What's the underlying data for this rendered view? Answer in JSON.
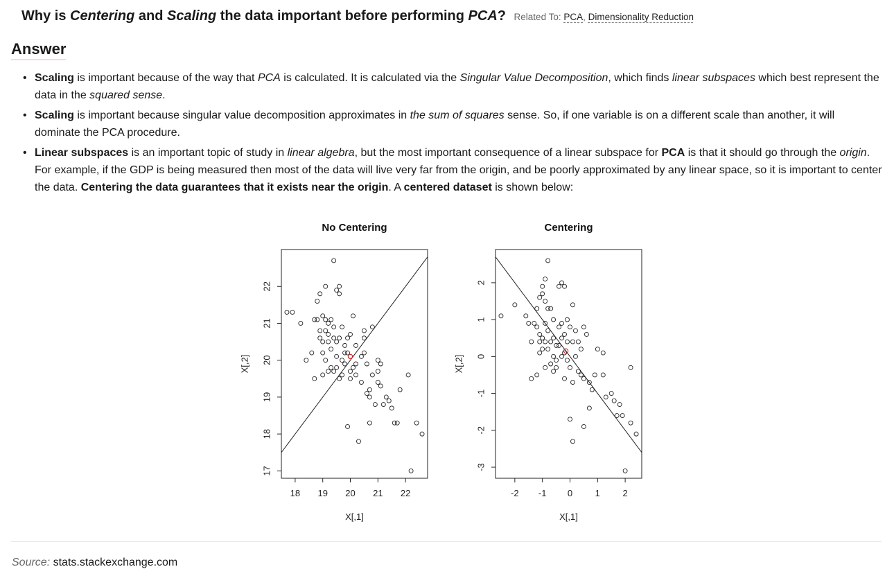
{
  "question": {
    "p1": "Why is ",
    "em1": "Centering",
    "p2": " and ",
    "em2": "Scaling",
    "p3": " the data important before performing ",
    "em3": "PCA",
    "p4": "?",
    "related_label": "Related To:",
    "tags": [
      "PCA",
      "Dimensionality Reduction"
    ]
  },
  "answer_heading": "Answer",
  "bullets": [
    [
      {
        "t": "Scaling",
        "s": "b"
      },
      {
        "t": " is important because of the way that "
      },
      {
        "t": "PCA",
        "s": "i"
      },
      {
        "t": " is calculated. It is calculated via the "
      },
      {
        "t": "Singular Value Decomposition",
        "s": "i"
      },
      {
        "t": ", which finds "
      },
      {
        "t": "linear subspaces",
        "s": "i"
      },
      {
        "t": " which best represent the data in the "
      },
      {
        "t": "squared sense",
        "s": "i"
      },
      {
        "t": "."
      }
    ],
    [
      {
        "t": "Scaling",
        "s": "b"
      },
      {
        "t": " is important because singular value decomposition approximates in "
      },
      {
        "t": "the sum of squares",
        "s": "i"
      },
      {
        "t": " sense. So, if one variable is on a different scale than another, it will dominate the PCA procedure."
      }
    ],
    [
      {
        "t": "Linear subspaces",
        "s": "b"
      },
      {
        "t": " is an important topic of study in "
      },
      {
        "t": "linear algebra",
        "s": "i"
      },
      {
        "t": ", but the most important consequence of a linear subspace for "
      },
      {
        "t": "PCA",
        "s": "b"
      },
      {
        "t": " is that it should go through the "
      },
      {
        "t": "origin",
        "s": "i"
      },
      {
        "t": ". For example, if the GDP is being measured then most of the data will live very far from the origin, and be poorly approximated by any linear space, so it is important to center the data. "
      },
      {
        "t": "Centering the data guarantees that it exists near the origin",
        "s": "b"
      },
      {
        "t": ". A "
      },
      {
        "t": "centered dataset",
        "s": "b"
      },
      {
        "t": " is shown below:"
      }
    ]
  ],
  "source": {
    "label": "Source:",
    "text": "stats.stackexchange.com"
  },
  "chart_data": [
    {
      "type": "scatter",
      "title": "No Centering",
      "xlabel": "X[,1]",
      "ylabel": "X[,2]",
      "xlim": [
        17.5,
        22.8
      ],
      "ylim": [
        16.8,
        23.0
      ],
      "xticks": [
        18,
        19,
        20,
        21,
        22
      ],
      "yticks": [
        17,
        18,
        19,
        20,
        21,
        22
      ],
      "line": {
        "x": [
          17.5,
          22.8
        ],
        "y": [
          17.5,
          22.8
        ]
      },
      "mean_point": {
        "x": 20.0,
        "y": 20.1
      },
      "points": [
        [
          17.7,
          21.3
        ],
        [
          17.9,
          21.3
        ],
        [
          18.2,
          21.0
        ],
        [
          18.4,
          20.0
        ],
        [
          18.6,
          20.2
        ],
        [
          18.7,
          19.5
        ],
        [
          18.7,
          21.1
        ],
        [
          18.8,
          21.6
        ],
        [
          18.8,
          21.1
        ],
        [
          18.9,
          20.8
        ],
        [
          18.9,
          20.6
        ],
        [
          18.9,
          21.8
        ],
        [
          19.0,
          20.5
        ],
        [
          19.0,
          21.2
        ],
        [
          19.0,
          19.6
        ],
        [
          19.0,
          20.2
        ],
        [
          19.1,
          22.0
        ],
        [
          19.1,
          21.1
        ],
        [
          19.1,
          20.8
        ],
        [
          19.1,
          20.0
        ],
        [
          19.2,
          21.0
        ],
        [
          19.2,
          20.7
        ],
        [
          19.2,
          20.5
        ],
        [
          19.2,
          19.7
        ],
        [
          19.3,
          21.1
        ],
        [
          19.3,
          19.8
        ],
        [
          19.3,
          20.3
        ],
        [
          19.4,
          22.7
        ],
        [
          19.4,
          20.6
        ],
        [
          19.4,
          20.9
        ],
        [
          19.4,
          19.7
        ],
        [
          19.5,
          21.9
        ],
        [
          19.5,
          20.5
        ],
        [
          19.5,
          20.1
        ],
        [
          19.5,
          19.8
        ],
        [
          19.6,
          22.0
        ],
        [
          19.6,
          21.8
        ],
        [
          19.6,
          20.6
        ],
        [
          19.6,
          19.5
        ],
        [
          19.7,
          20.9
        ],
        [
          19.7,
          20.0
        ],
        [
          19.7,
          19.6
        ],
        [
          19.8,
          20.2
        ],
        [
          19.8,
          20.4
        ],
        [
          19.8,
          19.9
        ],
        [
          19.9,
          20.6
        ],
        [
          19.9,
          20.2
        ],
        [
          19.9,
          18.2
        ],
        [
          20.0,
          20.7
        ],
        [
          20.0,
          20.1
        ],
        [
          20.0,
          19.7
        ],
        [
          20.0,
          19.5
        ],
        [
          20.1,
          21.2
        ],
        [
          20.1,
          19.8
        ],
        [
          20.2,
          20.4
        ],
        [
          20.2,
          19.9
        ],
        [
          20.2,
          19.6
        ],
        [
          20.3,
          17.8
        ],
        [
          20.4,
          20.1
        ],
        [
          20.4,
          19.4
        ],
        [
          20.5,
          20.6
        ],
        [
          20.5,
          20.2
        ],
        [
          20.5,
          20.8
        ],
        [
          20.6,
          19.1
        ],
        [
          20.6,
          19.9
        ],
        [
          20.7,
          19.2
        ],
        [
          20.7,
          19.0
        ],
        [
          20.7,
          18.3
        ],
        [
          20.8,
          20.9
        ],
        [
          20.8,
          19.6
        ],
        [
          20.9,
          18.8
        ],
        [
          21.0,
          20.0
        ],
        [
          21.0,
          19.7
        ],
        [
          21.0,
          19.4
        ],
        [
          21.1,
          19.3
        ],
        [
          21.1,
          19.9
        ],
        [
          21.2,
          18.8
        ],
        [
          21.3,
          19.0
        ],
        [
          21.4,
          18.9
        ],
        [
          21.5,
          18.7
        ],
        [
          21.6,
          18.3
        ],
        [
          21.7,
          18.3
        ],
        [
          21.8,
          19.2
        ],
        [
          22.1,
          19.6
        ],
        [
          22.2,
          17.0
        ],
        [
          22.4,
          18.3
        ],
        [
          22.6,
          18.0
        ]
      ]
    },
    {
      "type": "scatter",
      "title": "Centering",
      "xlabel": "X[,1]",
      "ylabel": "X[,2]",
      "xlim": [
        -2.7,
        2.6
      ],
      "ylim": [
        -3.3,
        2.9
      ],
      "xticks": [
        -2,
        -1,
        0,
        1,
        2
      ],
      "yticks": [
        -3,
        -2,
        -1,
        0,
        1,
        2
      ],
      "line": {
        "x": [
          -2.7,
          2.6
        ],
        "y": [
          2.7,
          -2.6
        ]
      },
      "mean_point": {
        "x": -0.15,
        "y": 0.15
      },
      "points": [
        [
          -2.5,
          1.1
        ],
        [
          -2.0,
          1.4
        ],
        [
          -1.6,
          1.1
        ],
        [
          -1.5,
          0.9
        ],
        [
          -1.4,
          0.4
        ],
        [
          -1.4,
          -0.6
        ],
        [
          -1.3,
          0.9
        ],
        [
          -1.2,
          1.3
        ],
        [
          -1.2,
          0.8
        ],
        [
          -1.2,
          -0.5
        ],
        [
          -1.1,
          0.6
        ],
        [
          -1.1,
          0.4
        ],
        [
          -1.1,
          1.6
        ],
        [
          -1.1,
          0.1
        ],
        [
          -1.0,
          1.7
        ],
        [
          -1.0,
          0.5
        ],
        [
          -1.0,
          0.2
        ],
        [
          -1.0,
          1.9
        ],
        [
          -0.9,
          1.5
        ],
        [
          -0.9,
          0.9
        ],
        [
          -0.9,
          0.4
        ],
        [
          -0.9,
          -0.3
        ],
        [
          -0.9,
          2.1
        ],
        [
          -0.8,
          1.3
        ],
        [
          -0.8,
          0.7
        ],
        [
          -0.8,
          0.2
        ],
        [
          -0.8,
          2.6
        ],
        [
          -0.7,
          1.3
        ],
        [
          -0.7,
          0.4
        ],
        [
          -0.7,
          -0.2
        ],
        [
          -0.6,
          1.0
        ],
        [
          -0.6,
          0.5
        ],
        [
          -0.6,
          0.0
        ],
        [
          -0.6,
          -0.4
        ],
        [
          -0.5,
          0.3
        ],
        [
          -0.5,
          -0.1
        ],
        [
          -0.5,
          -0.3
        ],
        [
          -0.4,
          1.9
        ],
        [
          -0.4,
          0.8
        ],
        [
          -0.4,
          0.3
        ],
        [
          -0.3,
          2.0
        ],
        [
          -0.3,
          0.9
        ],
        [
          -0.3,
          0.5
        ],
        [
          -0.3,
          0.0
        ],
        [
          -0.2,
          1.9
        ],
        [
          -0.2,
          0.6
        ],
        [
          -0.2,
          0.1
        ],
        [
          -0.2,
          -0.6
        ],
        [
          -0.1,
          1.0
        ],
        [
          -0.1,
          0.4
        ],
        [
          -0.1,
          -0.1
        ],
        [
          0.0,
          0.8
        ],
        [
          0.0,
          -0.3
        ],
        [
          0.0,
          -1.7
        ],
        [
          0.1,
          1.4
        ],
        [
          0.1,
          0.4
        ],
        [
          0.1,
          -0.7
        ],
        [
          0.1,
          -2.3
        ],
        [
          0.2,
          0.7
        ],
        [
          0.2,
          0.0
        ],
        [
          0.3,
          0.4
        ],
        [
          0.3,
          -0.4
        ],
        [
          0.4,
          0.2
        ],
        [
          0.4,
          -0.5
        ],
        [
          0.5,
          0.8
        ],
        [
          0.5,
          -1.9
        ],
        [
          0.5,
          -0.6
        ],
        [
          0.6,
          0.6
        ],
        [
          0.7,
          -0.7
        ],
        [
          0.7,
          -1.4
        ],
        [
          0.8,
          -0.9
        ],
        [
          0.9,
          -0.5
        ],
        [
          1.0,
          0.2
        ],
        [
          1.2,
          -0.5
        ],
        [
          1.2,
          0.1
        ],
        [
          1.3,
          -1.1
        ],
        [
          1.5,
          -1.0
        ],
        [
          1.6,
          -1.2
        ],
        [
          1.7,
          -1.6
        ],
        [
          1.8,
          -1.3
        ],
        [
          1.9,
          -1.6
        ],
        [
          2.0,
          -3.1
        ],
        [
          2.2,
          -0.3
        ],
        [
          2.2,
          -1.8
        ],
        [
          2.4,
          -2.1
        ]
      ]
    }
  ]
}
